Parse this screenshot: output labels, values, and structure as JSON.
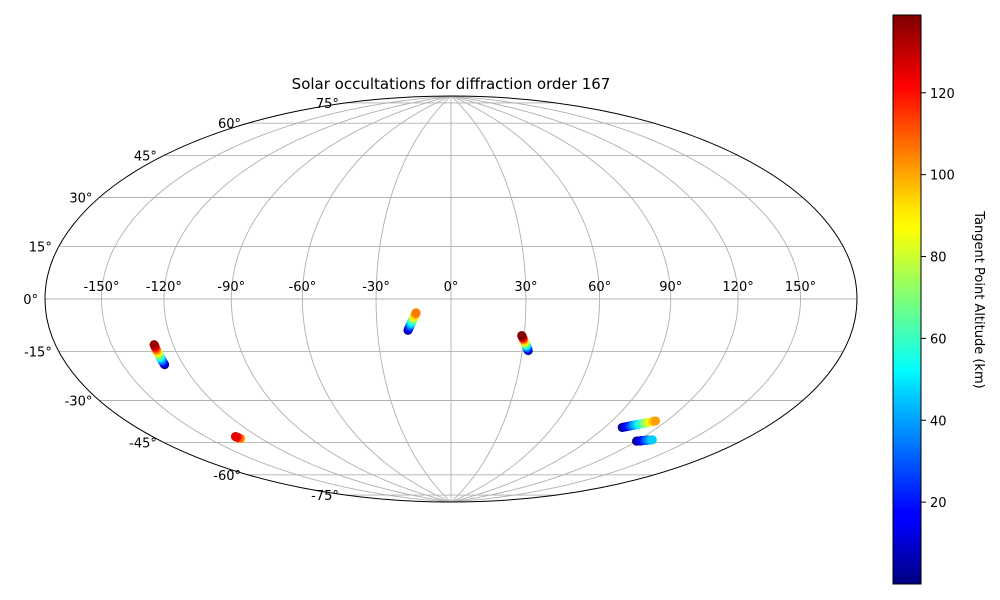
{
  "chart_data": {
    "type": "scatter",
    "projection": "hammer",
    "title": "Solar occultations for diffraction order 167",
    "xlabel": "",
    "ylabel": "",
    "grid": true,
    "lon_ticks": [
      -150,
      -120,
      -90,
      -60,
      -30,
      0,
      30,
      60,
      90,
      120,
      150
    ],
    "lon_tick_labels": [
      "-150°",
      "-120°",
      "-90°",
      "-60°",
      "-30°",
      "0°",
      "30°",
      "60°",
      "90°",
      "120°",
      "150°"
    ],
    "lat_ticks": [
      -75,
      -60,
      -45,
      -30,
      -15,
      0,
      15,
      30,
      45,
      60,
      75
    ],
    "lat_tick_labels": [
      "-75°",
      "-60°",
      "-45°",
      "-30°",
      "-15°",
      "0°",
      "15°",
      "30°",
      "45°",
      "60°",
      "75°"
    ],
    "colorbar": {
      "label": "Tangent Point Altitude (km)",
      "colormap": "jet",
      "range": [
        0,
        139
      ],
      "ticks": [
        20,
        40,
        60,
        80,
        100,
        120
      ],
      "tick_labels": [
        "20",
        "40",
        "60",
        "80",
        "100",
        "120"
      ]
    },
    "series": [
      {
        "lon_start": -129.0,
        "lat_start": -22.5,
        "lon_end": -129.0,
        "lat_end": -15.5,
        "alt_start": 0,
        "alt_end": 135
      },
      {
        "lon_start": -17.5,
        "lat_start": -12.5,
        "lon_end": -14.0,
        "lat_end": -5.5,
        "alt_start": 0,
        "alt_end": 105
      },
      {
        "lon_start": 32.5,
        "lat_start": -20.5,
        "lon_end": 29.0,
        "lat_end": -14.5,
        "alt_start": 0,
        "alt_end": 139
      },
      {
        "lon_start": -132.0,
        "lat_start": -50.5,
        "lon_end": -133.0,
        "lat_end": -49.5,
        "alt_start": 95,
        "alt_end": 125
      },
      {
        "lon_start": 100.0,
        "lat_start": -49.0,
        "lon_end": 114.0,
        "lat_end": -45.0,
        "alt_start": 0,
        "alt_end": 100
      },
      {
        "lon_start": 120.0,
        "lat_start": -53.0,
        "lon_end": 128.0,
        "lat_end": -51.5,
        "alt_start": 0,
        "alt_end": 45
      }
    ]
  }
}
